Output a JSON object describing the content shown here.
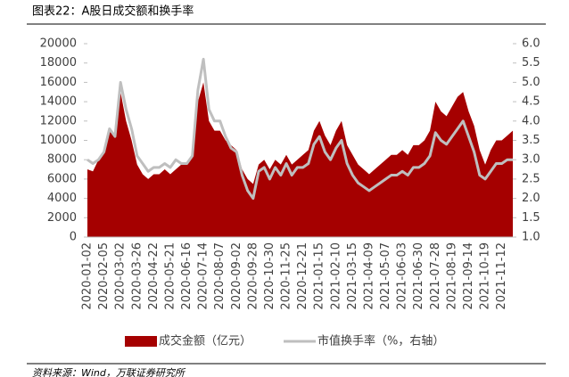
{
  "chart_data": {
    "type": "area-line",
    "title": "图表22：A股日成交额和换手率",
    "source": "资料来源：Wind，万联证券研究所",
    "categories": [
      "2020-01-02",
      null,
      null,
      "2020-02-05",
      null,
      null,
      "2020-03-02",
      null,
      null,
      "2020-03-26",
      null,
      null,
      "2020-04-22",
      null,
      null,
      "2020-05-21",
      null,
      null,
      "2020-06-16",
      null,
      null,
      "2020-07-14",
      null,
      null,
      "2020-08-07",
      null,
      null,
      "2020-09-02",
      null,
      null,
      "2020-09-28",
      null,
      null,
      "2020-10-30",
      null,
      null,
      "2020-11-25",
      null,
      null,
      "2020-12-21",
      null,
      null,
      "2021-01-15",
      null,
      null,
      "2021-02-10",
      null,
      null,
      "2021-03-15",
      null,
      null,
      "2021-04-09",
      null,
      null,
      "2021-05-07",
      null,
      null,
      "2021-06-03",
      null,
      null,
      "2021-06-30",
      null,
      null,
      "2021-07-28",
      null,
      null,
      "2021-08-19",
      null,
      null,
      "2021-09-14",
      null,
      null,
      "2021-10-19",
      null,
      null,
      "2021-11-12",
      null,
      null
    ],
    "series": [
      {
        "name": "成交金额（亿元）",
        "color": "#a50000",
        "kind": "area",
        "values": [
          7000,
          6800,
          8000,
          9000,
          11000,
          10500,
          15000,
          12000,
          10000,
          7500,
          6500,
          6000,
          6500,
          6500,
          7000,
          6500,
          7000,
          7500,
          7500,
          8500,
          14000,
          16000,
          12000,
          11000,
          11000,
          10000,
          9500,
          9000,
          7000,
          6000,
          5500,
          7500,
          8000,
          7000,
          8000,
          7500,
          8500,
          7500,
          8000,
          8500,
          9000,
          11000,
          12000,
          10500,
          9500,
          11000,
          12000,
          9500,
          8500,
          7500,
          7000,
          6500,
          7000,
          7500,
          8000,
          8500,
          8500,
          9000,
          8500,
          9500,
          9500,
          10000,
          11000,
          14000,
          13000,
          12500,
          13500,
          14500,
          15000,
          13000,
          11500,
          9000,
          7500,
          9000,
          10000,
          10000,
          10500,
          11000
        ]
      },
      {
        "name": "市值换手率（%，右轴）",
        "color": "#bfbfbf",
        "kind": "line",
        "axis": "y2",
        "values": [
          3.0,
          2.9,
          3.0,
          3.2,
          3.8,
          3.6,
          5.0,
          4.3,
          3.8,
          3.1,
          2.9,
          2.7,
          2.8,
          2.8,
          2.9,
          2.8,
          3.0,
          2.9,
          2.9,
          3.1,
          4.8,
          5.6,
          4.3,
          4.0,
          4.0,
          3.6,
          3.3,
          3.2,
          2.6,
          2.2,
          2.0,
          2.7,
          2.8,
          2.5,
          2.8,
          2.6,
          2.9,
          2.6,
          2.8,
          2.8,
          2.9,
          3.4,
          3.6,
          3.2,
          3.0,
          3.3,
          3.5,
          2.9,
          2.6,
          2.4,
          2.3,
          2.2,
          2.3,
          2.4,
          2.5,
          2.6,
          2.6,
          2.7,
          2.6,
          2.8,
          2.8,
          2.9,
          3.1,
          3.7,
          3.5,
          3.4,
          3.6,
          3.8,
          4.0,
          3.6,
          3.2,
          2.6,
          2.5,
          2.7,
          2.9,
          2.9,
          3.0,
          3.0
        ]
      }
    ],
    "ylim": [
      0,
      20000
    ],
    "yticks": [
      0,
      2000,
      4000,
      6000,
      8000,
      10000,
      12000,
      14000,
      16000,
      18000,
      20000
    ],
    "y2lim": [
      1,
      6
    ],
    "y2ticks": [
      {
        "value": 1,
        "label": "1.0"
      },
      {
        "value": 1.5,
        "label": "1.5"
      },
      {
        "value": 2,
        "label": "2.0"
      },
      {
        "value": 2.5,
        "label": "2.5"
      },
      {
        "value": 3,
        "label": "3.0"
      },
      {
        "value": 3.5,
        "label": "3.5"
      },
      {
        "value": 4,
        "label": "4.0"
      },
      {
        "value": 4.5,
        "label": "4.5"
      },
      {
        "value": 5,
        "label": "5.0"
      },
      {
        "value": 5.5,
        "label": "5.5"
      },
      {
        "value": 6,
        "label": "6.0"
      }
    ]
  }
}
